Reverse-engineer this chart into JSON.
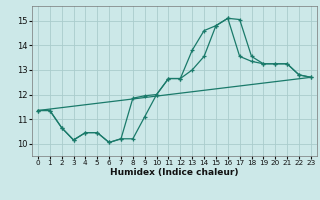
{
  "xlabel": "Humidex (Indice chaleur)",
  "background_color": "#cce8e8",
  "grid_color": "#aacccc",
  "line_color": "#1a7a6a",
  "xlim": [
    -0.5,
    23.5
  ],
  "ylim": [
    9.5,
    15.6
  ],
  "yticks": [
    10,
    11,
    12,
    13,
    14,
    15
  ],
  "xticks": [
    0,
    1,
    2,
    3,
    4,
    5,
    6,
    7,
    8,
    9,
    10,
    11,
    12,
    13,
    14,
    15,
    16,
    17,
    18,
    19,
    20,
    21,
    22,
    23
  ],
  "line1_x": [
    0,
    1,
    2,
    3,
    4,
    5,
    6,
    7,
    8,
    9,
    10,
    11,
    12,
    13,
    14,
    15,
    16,
    17,
    18,
    19,
    20,
    21,
    22,
    23
  ],
  "line1_y": [
    11.35,
    11.35,
    10.65,
    10.15,
    10.45,
    10.45,
    10.05,
    10.2,
    10.2,
    11.1,
    12.0,
    12.65,
    12.65,
    13.8,
    14.6,
    14.8,
    15.1,
    15.05,
    13.55,
    13.25,
    13.25,
    13.25,
    12.8,
    12.7
  ],
  "line2_x": [
    0,
    1,
    2,
    3,
    4,
    5,
    6,
    7,
    8,
    9,
    10,
    11,
    12,
    13,
    14,
    15,
    16,
    17,
    18,
    19,
    20,
    21,
    22,
    23
  ],
  "line2_y": [
    11.35,
    11.35,
    10.65,
    10.15,
    10.45,
    10.45,
    10.05,
    10.2,
    11.85,
    11.95,
    12.0,
    12.65,
    12.65,
    13.0,
    13.55,
    14.8,
    15.1,
    13.55,
    13.35,
    13.25,
    13.25,
    13.25,
    12.8,
    12.7
  ],
  "line3_x": [
    0,
    23
  ],
  "line3_y": [
    11.35,
    12.7
  ]
}
